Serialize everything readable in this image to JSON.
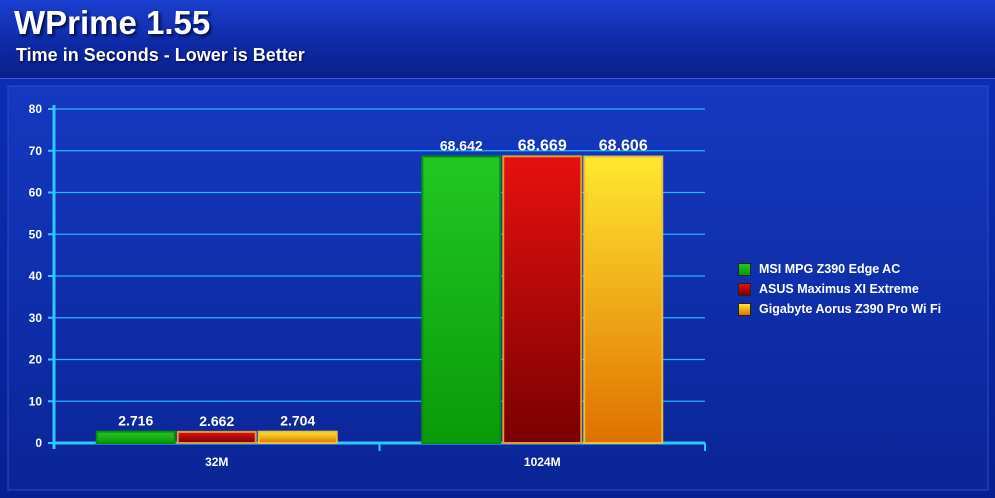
{
  "chart_data": {
    "type": "bar",
    "title": "WPrime 1.55",
    "subtitle": "Time in Seconds - Lower is Better",
    "categories": [
      "32M",
      "1024M"
    ],
    "series": [
      {
        "name": "MSI MPG Z390 Edge AC",
        "values": [
          2.716,
          68.642
        ],
        "labels": [
          "2.716",
          "68.642"
        ]
      },
      {
        "name": "ASUS Maximus XI Extreme",
        "values": [
          2.662,
          68.669
        ],
        "labels": [
          "2.662",
          "68.669"
        ]
      },
      {
        "name": "Gigabyte Aorus Z390 Pro Wi Fi",
        "values": [
          2.704,
          68.606
        ],
        "labels": [
          "2.704",
          "68.606"
        ]
      }
    ],
    "ylim": [
      0,
      80
    ],
    "yticks": [
      "0",
      "10",
      "20",
      "30",
      "40",
      "50",
      "60",
      "70",
      "80"
    ],
    "grid": true,
    "legend_position": "right"
  },
  "colors": {
    "series": [
      "#10b010",
      "#8a0000",
      "#f0b000"
    ],
    "series_light": [
      "#22c822",
      "#e81010",
      "#ffe830"
    ],
    "series_dark": [
      "#0a9a0a",
      "#7a0000",
      "#e07000"
    ],
    "series_border": [
      "#0c8c0c",
      "#d8a030",
      "#e8c040"
    ],
    "axis": "#2ec8ff",
    "grid": "#28b4ff"
  }
}
